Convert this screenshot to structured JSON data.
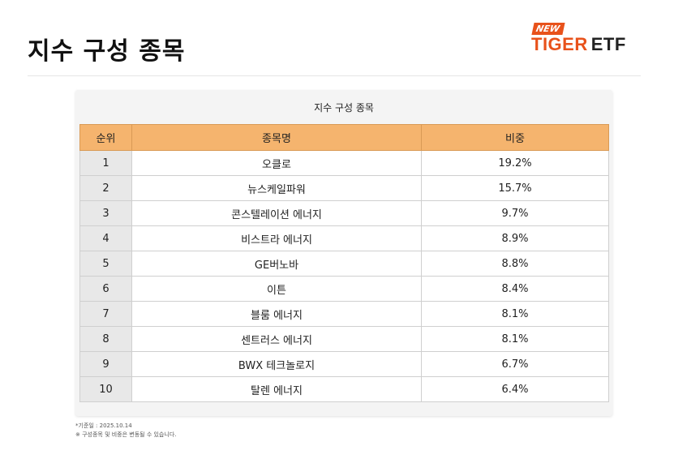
{
  "header": {
    "title": "지수 구성 종목",
    "logo_new": "NEW",
    "logo_tiger": "TIGER",
    "logo_etf": "ETF"
  },
  "table": {
    "caption": "지수 구성 종목",
    "columns": [
      "순위",
      "종목명",
      "비중"
    ],
    "rows": [
      {
        "rank": "1",
        "name": "오클로",
        "weight": "19.2%"
      },
      {
        "rank": "2",
        "name": "뉴스케일파워",
        "weight": "15.7%"
      },
      {
        "rank": "3",
        "name": "콘스텔레이션 에너지",
        "weight": "9.7%"
      },
      {
        "rank": "4",
        "name": "비스트라 에너지",
        "weight": "8.9%"
      },
      {
        "rank": "5",
        "name": "GE버노바",
        "weight": "8.8%"
      },
      {
        "rank": "6",
        "name": "이튼",
        "weight": "8.4%"
      },
      {
        "rank": "7",
        "name": "블룸 에너지",
        "weight": "8.1%"
      },
      {
        "rank": "8",
        "name": "센트러스 에너지",
        "weight": "8.1%"
      },
      {
        "rank": "9",
        "name": "BWX 테크놀로지",
        "weight": "6.7%"
      },
      {
        "rank": "10",
        "name": "탈렌 에너지",
        "weight": "6.4%"
      }
    ]
  },
  "footnotes": {
    "date": "*기준일 : 2025.10.14",
    "notice": "※ 구성종목 및 비중은 변동될 수 있습니다."
  },
  "colors": {
    "accent": "#e8521b",
    "header_bg": "#f5b46e"
  }
}
